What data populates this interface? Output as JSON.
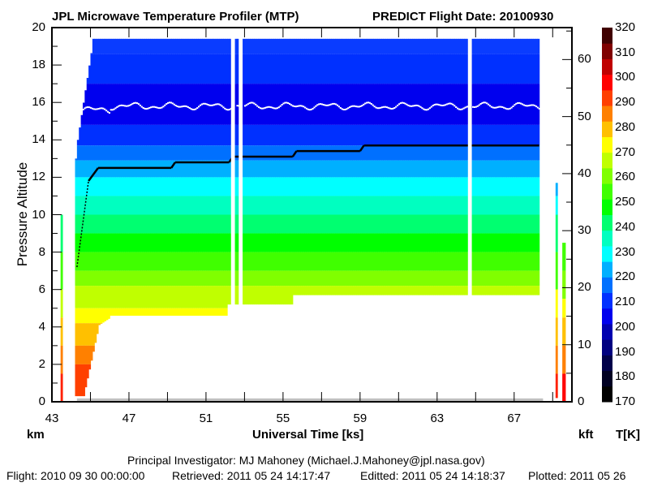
{
  "chart_data": {
    "type": "heatmap",
    "title": "JPL Microwave Temperature Profiler (MTP)",
    "subtitle": "PREDICT  Flight Date: 20100930",
    "xlabel": "Universal Time [ks]",
    "ylabel": "Pressure Altitude",
    "y_unit_left": "km",
    "y_unit_right": "kft",
    "colorbar_label": "T[K]",
    "xlim": [
      43,
      70
    ],
    "ylim_km": [
      0,
      20
    ],
    "ylim_kft": [
      0,
      65.6
    ],
    "x_ticks": [
      "43",
      "47",
      "51",
      "55",
      "59",
      "63",
      "67"
    ],
    "x_tick_values": [
      43,
      47,
      51,
      55,
      59,
      63,
      67
    ],
    "y_ticks_left": [
      "0",
      "2",
      "4",
      "6",
      "8",
      "10",
      "12",
      "14",
      "16",
      "18",
      "20"
    ],
    "y_tick_values_left": [
      0,
      2,
      4,
      6,
      8,
      10,
      12,
      14,
      16,
      18,
      20
    ],
    "y_ticks_right": [
      "0",
      "10",
      "20",
      "30",
      "40",
      "50",
      "60"
    ],
    "y_tick_values_right": [
      0,
      10,
      20,
      30,
      40,
      50,
      60
    ],
    "colorbar": {
      "levels": [
        170,
        180,
        190,
        200,
        210,
        220,
        230,
        240,
        250,
        260,
        270,
        280,
        290,
        300,
        310,
        320
      ],
      "labels": [
        "320",
        "310",
        "300",
        "290",
        "280",
        "270",
        "260",
        "250",
        "240",
        "230",
        "220",
        "210",
        "200",
        "190",
        "180",
        "170"
      ],
      "colors": [
        "#000000",
        "#000022",
        "#00004a",
        "#000080",
        "#0000b0",
        "#0000ee",
        "#0030ff",
        "#0070ff",
        "#00b0ff",
        "#00ffff",
        "#00ffc0",
        "#00ff70",
        "#00ff00",
        "#40ff00",
        "#80ff00",
        "#c0ff00",
        "#ffff00",
        "#ffc000",
        "#ff8000",
        "#ff4000",
        "#ff0000",
        "#c00000",
        "#800000",
        "#400000"
      ]
    },
    "tropopause_km": [
      {
        "x": 44.3,
        "y": 7.2
      },
      {
        "x": 44.9,
        "y": 11.8
      },
      {
        "x": 45.4,
        "y": 12.5
      },
      {
        "x": 49.2,
        "y": 12.5
      },
      {
        "x": 49.4,
        "y": 12.8
      },
      {
        "x": 52.2,
        "y": 12.8
      },
      {
        "x": 52.4,
        "y": 13.1
      },
      {
        "x": 55.5,
        "y": 13.1
      },
      {
        "x": 55.7,
        "y": 13.4
      },
      {
        "x": 59.0,
        "y": 13.4
      },
      {
        "x": 59.2,
        "y": 13.7
      },
      {
        "x": 68.3,
        "y": 13.7
      }
    ],
    "aircraft_altitude_km": 15.8,
    "data_gaps_ks": [
      [
        52.3,
        52.5
      ],
      [
        52.7,
        52.9
      ],
      [
        64.6,
        64.8
      ]
    ],
    "data_coverage_ks": [
      44.2,
      68.3
    ],
    "top_of_retrieval_km": 19.5
  },
  "footer": {
    "pi": "Principal Investigator: MJ Mahoney (Michael.J.Mahoney@jpl.nasa.gov)",
    "flight": "Flight: 2010 09 30 00:00:00",
    "retrieved": "Retrieved: 2011 05 24 14:17:47",
    "edited": "Editted: 2011 05 24 14:18:37",
    "plotted": "Plotted: 2011 05 26"
  }
}
